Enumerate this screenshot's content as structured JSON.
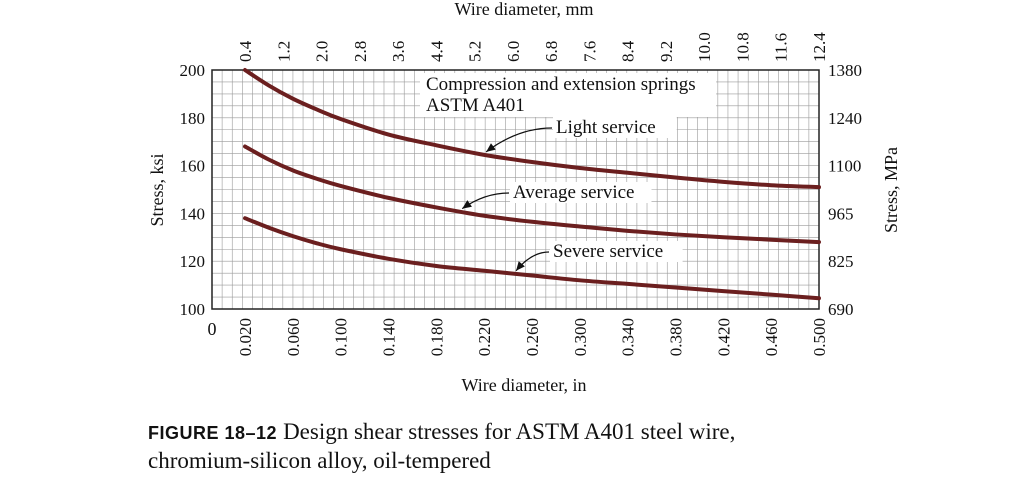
{
  "chart_data": {
    "type": "line",
    "top_axis": {
      "label": "Wire diameter, mm",
      "ticks": [
        "0.4",
        "1.2",
        "2.0",
        "2.8",
        "3.6",
        "4.4",
        "5.2",
        "6.0",
        "6.8",
        "7.6",
        "8.4",
        "9.2",
        "10.0",
        "10.8",
        "11.6",
        "12.4"
      ]
    },
    "x_axis": {
      "label": "Wire diameter, in",
      "range": [
        0.02,
        0.5
      ],
      "ticks": [
        "0.020",
        "0.060",
        "0.100",
        "0.140",
        "0.180",
        "0.220",
        "0.260",
        "0.300",
        "0.340",
        "0.380",
        "0.420",
        "0.460",
        "0.500"
      ],
      "origin_label": "0"
    },
    "y_axis": {
      "label": "Stress, ksi",
      "range": [
        100,
        200
      ],
      "ticks": [
        "100",
        "120",
        "140",
        "160",
        "180",
        "200"
      ]
    },
    "y2_axis": {
      "label": "Stress, MPa",
      "ticks": [
        "690",
        "825",
        "965",
        "1100",
        "1240",
        "1380"
      ]
    },
    "title_lines": [
      "Compression and extension springs",
      "ASTM A401"
    ],
    "grid": true,
    "series": [
      {
        "name": "Light service",
        "x": [
          0.02,
          0.04,
          0.06,
          0.08,
          0.1,
          0.14,
          0.18,
          0.22,
          0.26,
          0.3,
          0.34,
          0.38,
          0.42,
          0.46,
          0.5
        ],
        "values": [
          200,
          193.5,
          188,
          183.5,
          179.5,
          173,
          168.5,
          164.5,
          161.5,
          159,
          157,
          155,
          153.2,
          151.8,
          151
        ]
      },
      {
        "name": "Average service",
        "x": [
          0.02,
          0.04,
          0.06,
          0.08,
          0.1,
          0.14,
          0.18,
          0.22,
          0.26,
          0.3,
          0.34,
          0.38,
          0.42,
          0.46,
          0.5
        ],
        "values": [
          168,
          162.5,
          158,
          154.5,
          151.5,
          146.5,
          142.5,
          139,
          136.5,
          134.5,
          132.7,
          131.2,
          130,
          129,
          128
        ]
      },
      {
        "name": "Severe service",
        "x": [
          0.02,
          0.04,
          0.06,
          0.08,
          0.1,
          0.14,
          0.18,
          0.22,
          0.26,
          0.3,
          0.34,
          0.38,
          0.42,
          0.46,
          0.5
        ],
        "values": [
          138,
          134,
          130.5,
          127.5,
          125,
          121,
          118,
          116,
          114,
          112,
          110.5,
          109,
          107.5,
          106,
          104.5
        ]
      }
    ],
    "annotations": [
      {
        "text": "Light service",
        "series": "Light service",
        "point_x": 0.22
      },
      {
        "text": "Average service",
        "series": "Average service",
        "point_x": 0.2
      },
      {
        "text": "Severe service",
        "series": "Severe service",
        "point_x": 0.245
      }
    ]
  },
  "caption": {
    "label": "FIGURE 18–12",
    "line1": "Design shear stresses for ASTM A401 steel wire,",
    "line2": "chromium-silicon alloy, oil-tempered"
  },
  "colors": {
    "curve": "#6b1f1f",
    "grid": "#9a9a9a",
    "text": "#111111"
  }
}
